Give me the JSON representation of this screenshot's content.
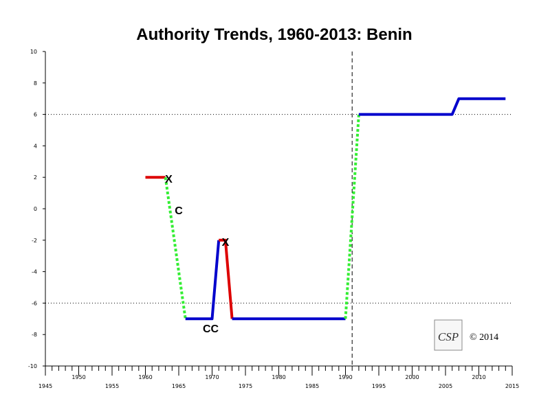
{
  "chart_data": {
    "type": "line",
    "title": "Authority Trends, 1960-2013: Benin",
    "xlabel": "",
    "ylabel": "",
    "xlim": [
      1945,
      2015
    ],
    "ylim": [
      -10,
      10
    ],
    "x_ticks": [
      1945,
      1950,
      1955,
      1960,
      1965,
      1970,
      1975,
      1980,
      1985,
      1990,
      1995,
      2000,
      2005,
      2010,
      2015
    ],
    "y_ticks": [
      -10,
      -8,
      -6,
      -4,
      -2,
      0,
      2,
      4,
      6,
      8,
      10
    ],
    "reference_lines": [
      6,
      -6
    ],
    "event_line_x": 1991,
    "grid": false,
    "colors": {
      "polity": "#0000cc",
      "regime_change": "#dd0000",
      "transition": "#33ee33",
      "reference": "#000000"
    },
    "segments": [
      {
        "kind": "regime_change",
        "points": [
          [
            1960,
            2
          ],
          [
            1963,
            2
          ]
        ]
      },
      {
        "kind": "transition",
        "points": [
          [
            1963,
            2
          ],
          [
            1966,
            -7
          ]
        ]
      },
      {
        "kind": "polity",
        "points": [
          [
            1966,
            -7
          ],
          [
            1970,
            -7
          ],
          [
            1971,
            -2
          ]
        ]
      },
      {
        "kind": "regime_change",
        "points": [
          [
            1971,
            -2
          ],
          [
            1972,
            -2
          ],
          [
            1973,
            -7
          ]
        ]
      },
      {
        "kind": "polity",
        "points": [
          [
            1973,
            -7
          ],
          [
            1990,
            -7
          ]
        ]
      },
      {
        "kind": "transition",
        "points": [
          [
            1990,
            -7
          ],
          [
            1992,
            6
          ]
        ]
      },
      {
        "kind": "polity",
        "points": [
          [
            1992,
            6
          ],
          [
            2006,
            6
          ],
          [
            2007,
            7
          ],
          [
            2014,
            7
          ]
        ]
      }
    ],
    "annotations": [
      {
        "text": "X",
        "x": 1963.5,
        "y": 2
      },
      {
        "text": "C",
        "x": 1965,
        "y": 0
      },
      {
        "text": "X",
        "x": 1972,
        "y": -2
      },
      {
        "text": "CC",
        "x": 1969.8,
        "y": -7.5
      }
    ]
  },
  "logo": {
    "text": "CSP"
  },
  "copyright": "© 2014"
}
